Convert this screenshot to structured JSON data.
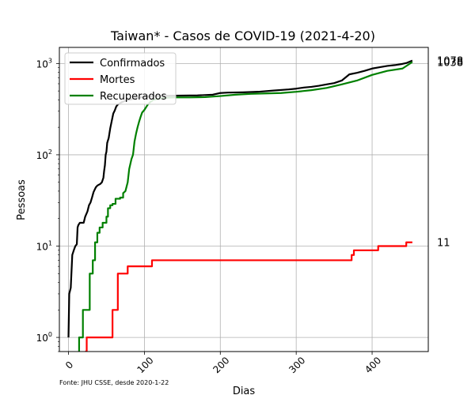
{
  "chart_data": {
    "type": "line",
    "title": "Taiwan* - Casos de COVID-19 (2021-4-20)",
    "xlabel": "Dias",
    "ylabel": "Pessoas",
    "yscale": "log",
    "xlim": [
      -12,
      474
    ],
    "ylim": [
      0.7,
      1500
    ],
    "xticks": [
      0,
      100,
      200,
      300,
      400
    ],
    "xtick_labels": [
      "0",
      "100",
      "200",
      "300",
      "400"
    ],
    "yticks": [
      1,
      10,
      100,
      1000
    ],
    "ytick_labels": [
      [
        "10",
        "0"
      ],
      [
        "10",
        "1"
      ],
      [
        "10",
        "2"
      ],
      [
        "10",
        "3"
      ]
    ],
    "grid": true,
    "legend_position": "top-left",
    "source_note": "Fonte: JHU CSSE, desde 2020-1-22",
    "series": [
      {
        "name": "Confirmados",
        "color": "#000000",
        "end_label": "1078",
        "points": [
          [
            0,
            1
          ],
          [
            1,
            3
          ],
          [
            3,
            3.5
          ],
          [
            5,
            8
          ],
          [
            7,
            9
          ],
          [
            9,
            10
          ],
          [
            11,
            10.5
          ],
          [
            12,
            16
          ],
          [
            13,
            17
          ],
          [
            15,
            18
          ],
          [
            20,
            18
          ],
          [
            22,
            21
          ],
          [
            25,
            24
          ],
          [
            27,
            28
          ],
          [
            29,
            30
          ],
          [
            31,
            34
          ],
          [
            33,
            39
          ],
          [
            36,
            44
          ],
          [
            38,
            46
          ],
          [
            40,
            47
          ],
          [
            42,
            48
          ],
          [
            44,
            50
          ],
          [
            46,
            56
          ],
          [
            47,
            67
          ],
          [
            48,
            77
          ],
          [
            49,
            100
          ],
          [
            50,
            108
          ],
          [
            51,
            135
          ],
          [
            53,
            153
          ],
          [
            55,
            195
          ],
          [
            57,
            235
          ],
          [
            59,
            283
          ],
          [
            61,
            306
          ],
          [
            63,
            339
          ],
          [
            65,
            355
          ],
          [
            67,
            363
          ],
          [
            70,
            376
          ],
          [
            73,
            385
          ],
          [
            76,
            395
          ],
          [
            80,
            400
          ],
          [
            85,
            410
          ],
          [
            90,
            420
          ],
          [
            95,
            425
          ],
          [
            100,
            429
          ],
          [
            110,
            440
          ],
          [
            130,
            443
          ],
          [
            150,
            445
          ],
          [
            170,
            447
          ],
          [
            190,
            455
          ],
          [
            200,
            475
          ],
          [
            210,
            480
          ],
          [
            230,
            483
          ],
          [
            250,
            490
          ],
          [
            270,
            505
          ],
          [
            290,
            520
          ],
          [
            300,
            530
          ],
          [
            310,
            545
          ],
          [
            320,
            555
          ],
          [
            330,
            570
          ],
          [
            340,
            590
          ],
          [
            350,
            610
          ],
          [
            360,
            650
          ],
          [
            370,
            760
          ],
          [
            380,
            790
          ],
          [
            390,
            830
          ],
          [
            400,
            880
          ],
          [
            410,
            910
          ],
          [
            420,
            940
          ],
          [
            430,
            960
          ],
          [
            440,
            990
          ],
          [
            445,
            1010
          ],
          [
            453,
            1078
          ]
        ]
      },
      {
        "name": "Mortes",
        "color": "#ff0000",
        "end_label": "11",
        "points": [
          [
            22,
            0.7
          ],
          [
            24,
            0.7
          ],
          [
            24,
            1
          ],
          [
            58,
            1
          ],
          [
            58,
            2
          ],
          [
            65,
            2
          ],
          [
            65,
            5
          ],
          [
            78,
            5
          ],
          [
            78,
            6
          ],
          [
            110,
            6
          ],
          [
            110,
            7
          ],
          [
            373,
            7
          ],
          [
            373,
            8
          ],
          [
            376,
            8
          ],
          [
            376,
            9
          ],
          [
            408,
            9
          ],
          [
            408,
            10
          ],
          [
            445,
            10
          ],
          [
            445,
            11
          ],
          [
            453,
            11
          ]
        ]
      },
      {
        "name": "Recuperados",
        "color": "#008000",
        "end_label": "1038",
        "points": [
          [
            13,
            0.7
          ],
          [
            14,
            0.7
          ],
          [
            14,
            1
          ],
          [
            19,
            1
          ],
          [
            19,
            2
          ],
          [
            28,
            2
          ],
          [
            28,
            5
          ],
          [
            32,
            5
          ],
          [
            32,
            7
          ],
          [
            35,
            7
          ],
          [
            35,
            11
          ],
          [
            38,
            11
          ],
          [
            38,
            14
          ],
          [
            41,
            14
          ],
          [
            41,
            16
          ],
          [
            45,
            16
          ],
          [
            45,
            18
          ],
          [
            50,
            18
          ],
          [
            50,
            21
          ],
          [
            52,
            21
          ],
          [
            52,
            26
          ],
          [
            55,
            26
          ],
          [
            55,
            28
          ],
          [
            58,
            28
          ],
          [
            58,
            29
          ],
          [
            62,
            29
          ],
          [
            62,
            33
          ],
          [
            68,
            33
          ],
          [
            68,
            34
          ],
          [
            72,
            34
          ],
          [
            72,
            38
          ],
          [
            75,
            40
          ],
          [
            78,
            50
          ],
          [
            80,
            70
          ],
          [
            83,
            90
          ],
          [
            85,
            100
          ],
          [
            87,
            140
          ],
          [
            89,
            170
          ],
          [
            91,
            200
          ],
          [
            93,
            230
          ],
          [
            95,
            260
          ],
          [
            97,
            290
          ],
          [
            100,
            310
          ],
          [
            104,
            350
          ],
          [
            108,
            380
          ],
          [
            112,
            400
          ],
          [
            118,
            410
          ],
          [
            125,
            420
          ],
          [
            140,
            425
          ],
          [
            160,
            425
          ],
          [
            180,
            428
          ],
          [
            200,
            440
          ],
          [
            220,
            455
          ],
          [
            240,
            465
          ],
          [
            260,
            470
          ],
          [
            280,
            475
          ],
          [
            300,
            490
          ],
          [
            320,
            510
          ],
          [
            340,
            540
          ],
          [
            360,
            590
          ],
          [
            380,
            650
          ],
          [
            400,
            750
          ],
          [
            420,
            830
          ],
          [
            440,
            880
          ],
          [
            453,
            1038
          ]
        ]
      }
    ]
  }
}
